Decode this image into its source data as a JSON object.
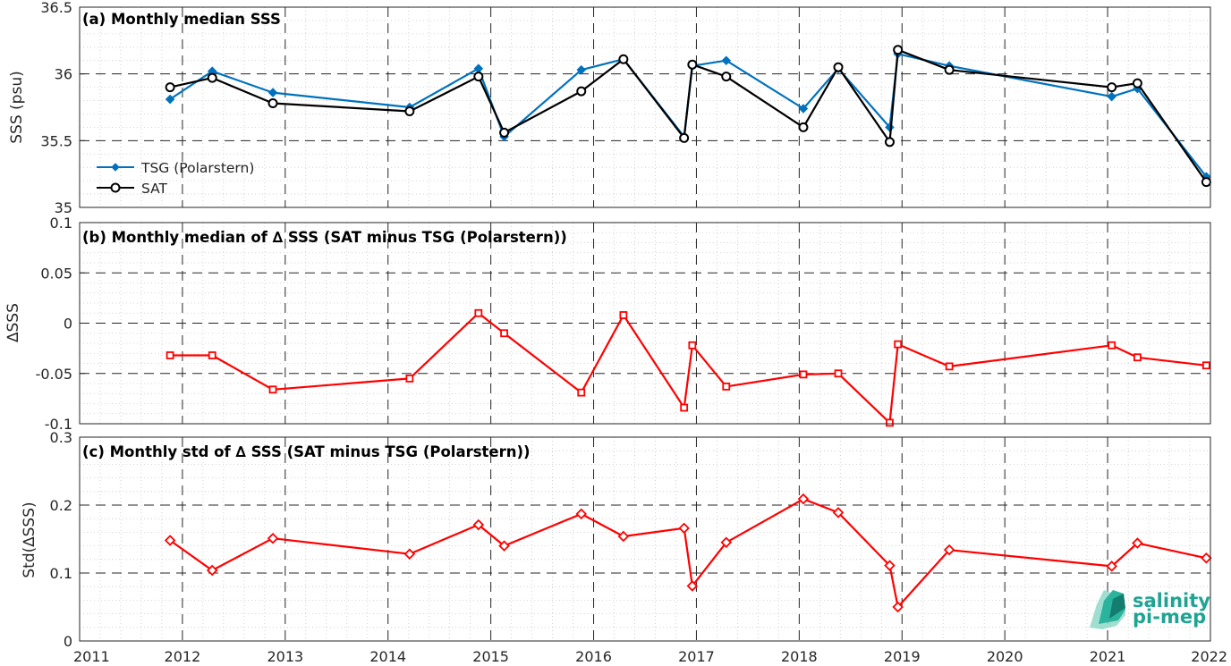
{
  "chart_data": [
    {
      "type": "line",
      "title": "(a) Monthly median SSS",
      "ylabel": "SSS (psu)",
      "xlim": [
        2011,
        2022
      ],
      "ylim": [
        35,
        36.5
      ],
      "yticks": [
        "35",
        "35.5",
        "36",
        "36.5"
      ],
      "grid": "on",
      "legend_placement": "lower-left",
      "series": [
        {
          "name": "TSG (Polarstern)",
          "color": "#0072bd",
          "marker": "diamond",
          "x": [
            2011.88,
            2012.29,
            2012.88,
            2014.21,
            2014.88,
            2015.13,
            2015.88,
            2016.29,
            2016.88,
            2016.96,
            2017.29,
            2018.04,
            2018.38,
            2018.88,
            2018.96,
            2019.46,
            2021.04,
            2021.29,
            2021.96
          ],
          "values": [
            35.81,
            36.02,
            35.86,
            35.75,
            36.04,
            35.53,
            36.03,
            36.11,
            35.53,
            36.06,
            36.1,
            35.74,
            36.04,
            35.6,
            36.15,
            36.06,
            35.83,
            35.89,
            35.23
          ]
        },
        {
          "name": "SAT",
          "color": "#000000",
          "marker": "circle",
          "x": [
            2011.88,
            2012.29,
            2012.88,
            2014.21,
            2014.88,
            2015.13,
            2015.88,
            2016.29,
            2016.88,
            2016.96,
            2017.29,
            2018.04,
            2018.38,
            2018.88,
            2018.96,
            2019.46,
            2021.04,
            2021.29,
            2021.96
          ],
          "values": [
            35.9,
            35.97,
            35.78,
            35.72,
            35.98,
            35.56,
            35.87,
            36.11,
            35.52,
            36.07,
            35.98,
            35.6,
            36.05,
            35.49,
            36.18,
            36.03,
            35.9,
            35.93,
            35.19
          ]
        }
      ]
    },
    {
      "type": "line",
      "title": "(b) Monthly median of ∆ SSS (SAT minus TSG (Polarstern))",
      "ylabel": "∆SSS",
      "xlim": [
        2011,
        2022
      ],
      "ylim": [
        -0.1,
        0.1
      ],
      "yticks": [
        "-0.1",
        "-0.05",
        "0",
        "0.05",
        "0.1"
      ],
      "grid": "on",
      "series": [
        {
          "color": "#ff0000",
          "marker": "square",
          "x": [
            2011.88,
            2012.29,
            2012.88,
            2014.21,
            2014.88,
            2015.13,
            2015.88,
            2016.29,
            2016.88,
            2016.96,
            2017.29,
            2018.04,
            2018.38,
            2018.88,
            2018.96,
            2019.46,
            2021.04,
            2021.29,
            2021.96
          ],
          "values": [
            -0.032,
            -0.032,
            -0.066,
            -0.055,
            0.01,
            -0.01,
            -0.069,
            0.008,
            -0.084,
            -0.022,
            -0.063,
            -0.051,
            -0.05,
            -0.099,
            -0.021,
            -0.043,
            -0.022,
            -0.034,
            -0.042
          ]
        }
      ]
    },
    {
      "type": "line",
      "title": "(c) Monthly std of ∆ SSS (SAT minus TSG (Polarstern))",
      "ylabel": "Std(∆SSS)",
      "xlim": [
        2011,
        2022
      ],
      "ylim": [
        0,
        0.3
      ],
      "yticks": [
        "0",
        "0.1",
        "0.2",
        "0.3"
      ],
      "xticks": [
        "2011",
        "2012",
        "2013",
        "2014",
        "2015",
        "2016",
        "2017",
        "2018",
        "2019",
        "2020",
        "2021",
        "2022"
      ],
      "grid": "on",
      "series": [
        {
          "color": "#ff0000",
          "marker": "diamond",
          "x": [
            2011.88,
            2012.29,
            2012.88,
            2014.21,
            2014.88,
            2015.13,
            2015.88,
            2016.29,
            2016.88,
            2016.96,
            2017.29,
            2018.04,
            2018.38,
            2018.88,
            2018.96,
            2019.46,
            2021.04,
            2021.29,
            2021.96
          ],
          "values": [
            0.148,
            0.104,
            0.151,
            0.128,
            0.171,
            0.14,
            0.187,
            0.154,
            0.166,
            0.081,
            0.145,
            0.209,
            0.189,
            0.111,
            0.05,
            0.134,
            0.11,
            0.144,
            0.122
          ]
        }
      ]
    }
  ],
  "logo": {
    "line1": "salinity",
    "line2": "pi-mep",
    "color": "#1fa493"
  }
}
